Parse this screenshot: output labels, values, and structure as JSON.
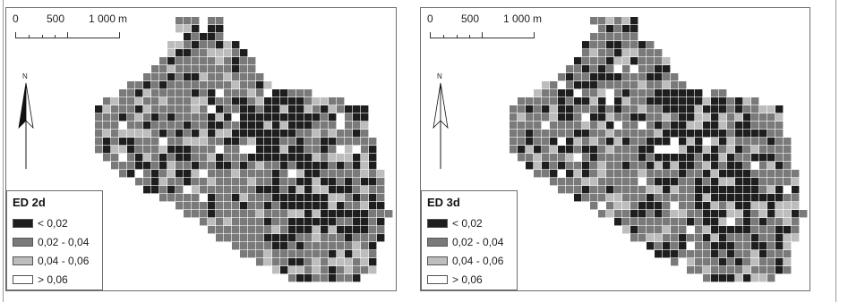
{
  "colors": {
    "class_lt_002": "#1e1e1e",
    "class_002_004": "#7a7a7a",
    "class_004_006": "#bdbdbd",
    "class_gt_006": "#ffffff",
    "frame": "#6e6e6e"
  },
  "scalebar": {
    "labels": [
      "0",
      "500",
      "1 000",
      "m"
    ]
  },
  "north_arrow": {
    "letter": "N",
    "icon": "north-arrow-icon"
  },
  "panels": [
    {
      "legend": {
        "title": "ED 2d",
        "classes": [
          {
            "label": "< 0,02",
            "color": "#1e1e1e"
          },
          {
            "label": "0,02 - 0,04",
            "color": "#7a7a7a"
          },
          {
            "label": "0,04 - 0,06",
            "color": "#bdbdbd"
          },
          {
            "label": "> 0,06",
            "color": "#ffffff"
          }
        ]
      }
    },
    {
      "legend": {
        "title": "ED 3d",
        "classes": [
          {
            "label": "< 0,02",
            "color": "#1e1e1e"
          },
          {
            "label": "0,02 - 0,04",
            "color": "#7a7a7a"
          },
          {
            "label": "0,04 - 0,06",
            "color": "#bdbdbd"
          },
          {
            "label": "> 0,06",
            "color": "#ffffff"
          }
        ]
      }
    }
  ]
}
